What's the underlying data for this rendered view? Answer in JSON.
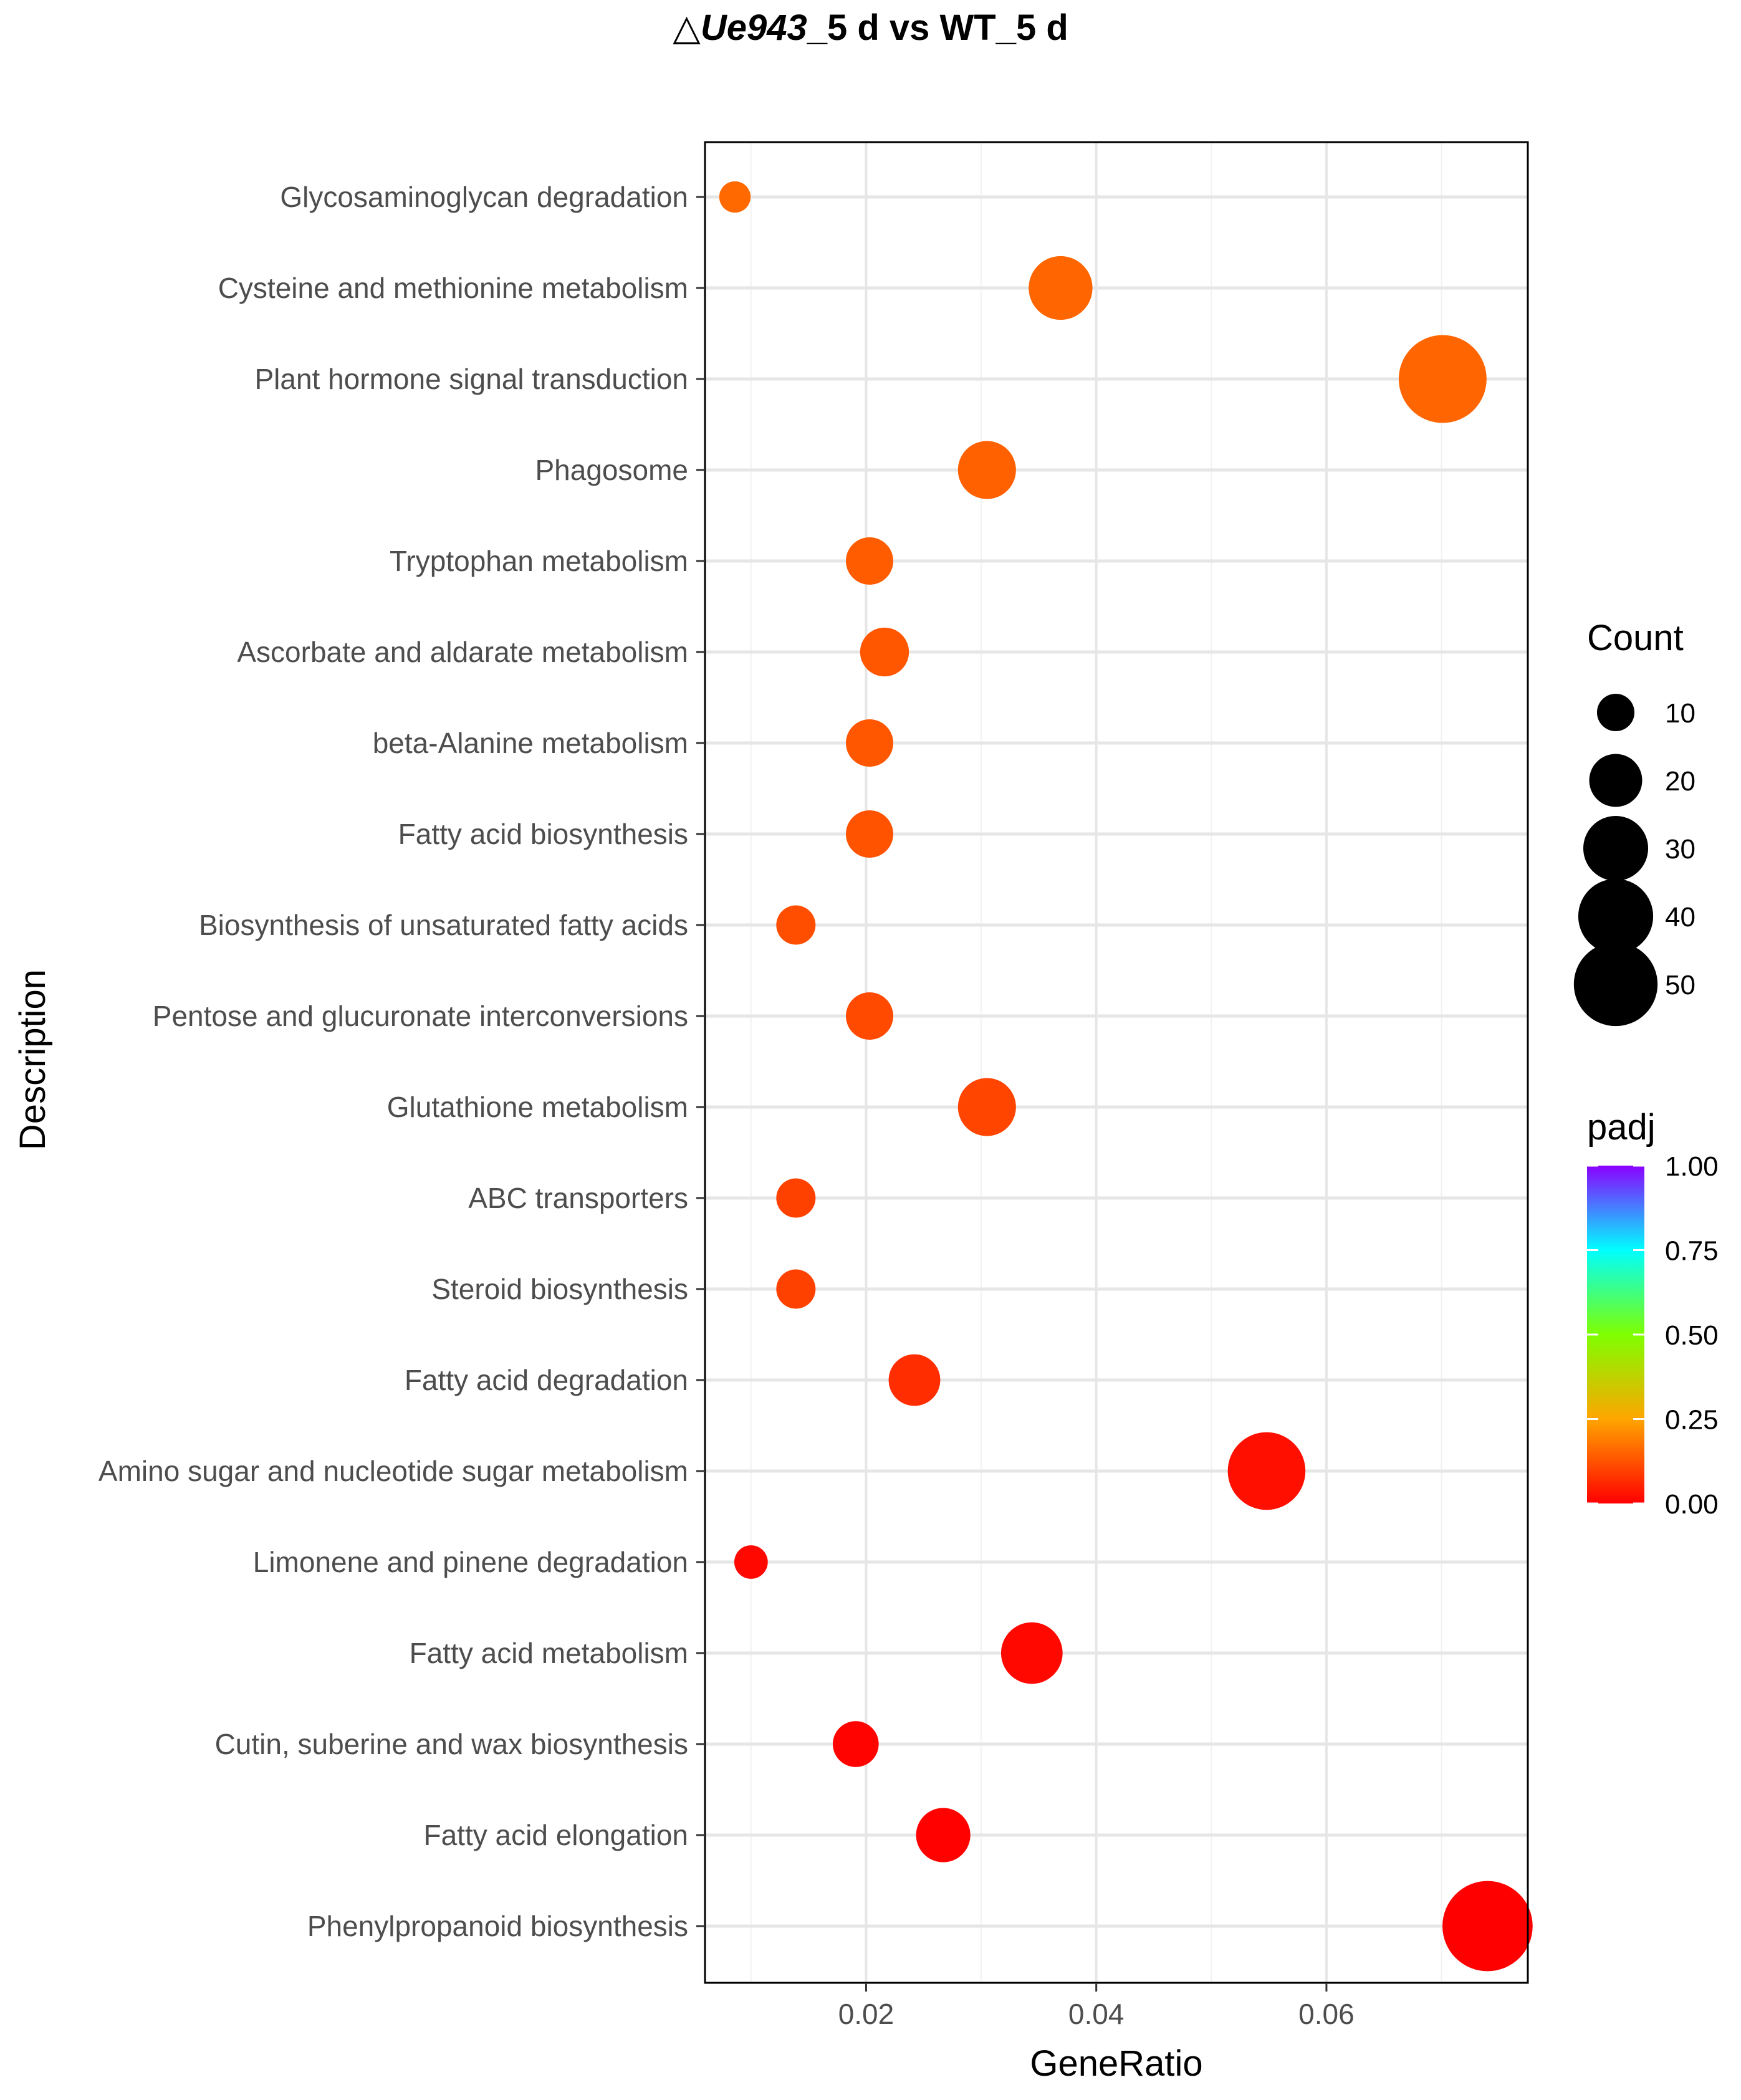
{
  "chart_data": {
    "type": "scatter",
    "title": {
      "prefix": "△",
      "italic": "Ue943",
      "suffix": "_5 d vs WT_5 d"
    },
    "xlabel": "GeneRatio",
    "ylabel": "Description",
    "xlim": [
      0.006,
      0.0775
    ],
    "xticks": [
      0.02,
      0.04,
      0.06
    ],
    "xtick_labels": [
      "0.02",
      "0.04",
      "0.06"
    ],
    "grid": true,
    "categories": [
      "Glycosaminoglycan degradation",
      "Cysteine and methionine metabolism",
      "Plant hormone signal transduction",
      "Phagosome",
      "Tryptophan metabolism",
      "Ascorbate and aldarate metabolism",
      "beta-Alanine metabolism",
      "Fatty acid biosynthesis",
      "Biosynthesis of unsaturated fatty acids",
      "Pentose and glucuronate interconversions",
      "Glutathione metabolism",
      "ABC transporters",
      "Steroid biosynthesis",
      "Fatty acid degradation",
      "Amino sugar and nucleotide sugar metabolism",
      "Limonene and pinene degradation",
      "Fatty acid metabolism",
      "Cutin, suberine and wax biosynthesis",
      "Fatty acid elongation",
      "Phenylpropanoid biosynthesis"
    ],
    "gene_ratio": [
      0.0086,
      0.0369,
      0.0701,
      0.0305,
      0.0203,
      0.0216,
      0.0203,
      0.0203,
      0.0139,
      0.0203,
      0.0305,
      0.0139,
      0.0139,
      0.0242,
      0.0548,
      0.01,
      0.0344,
      0.0191,
      0.0267,
      0.074
    ],
    "count": [
      7,
      29,
      55,
      24,
      16,
      17,
      16,
      16,
      11,
      16,
      24,
      11,
      11,
      19,
      43,
      8,
      27,
      15,
      21,
      58
    ],
    "padj": [
      0.09,
      0.085,
      0.085,
      0.08,
      0.075,
      0.07,
      0.07,
      0.065,
      0.06,
      0.055,
      0.05,
      0.045,
      0.045,
      0.03,
      0.01,
      0.005,
      0.005,
      0.002,
      0.001,
      0.0
    ],
    "legend": {
      "size_title": "Count",
      "size_values": [
        10,
        20,
        30,
        40,
        50
      ],
      "color_title": "padj",
      "color_ticks": [
        1.0,
        0.75,
        0.5,
        0.25,
        0.0
      ],
      "color_tick_labels": [
        "1.00",
        "0.75",
        "0.50",
        "0.25",
        "0.00"
      ],
      "colors": [
        "#8b00ff",
        "#00ffff",
        "#7fff00",
        "#ffa500",
        "#ff0000"
      ]
    }
  }
}
